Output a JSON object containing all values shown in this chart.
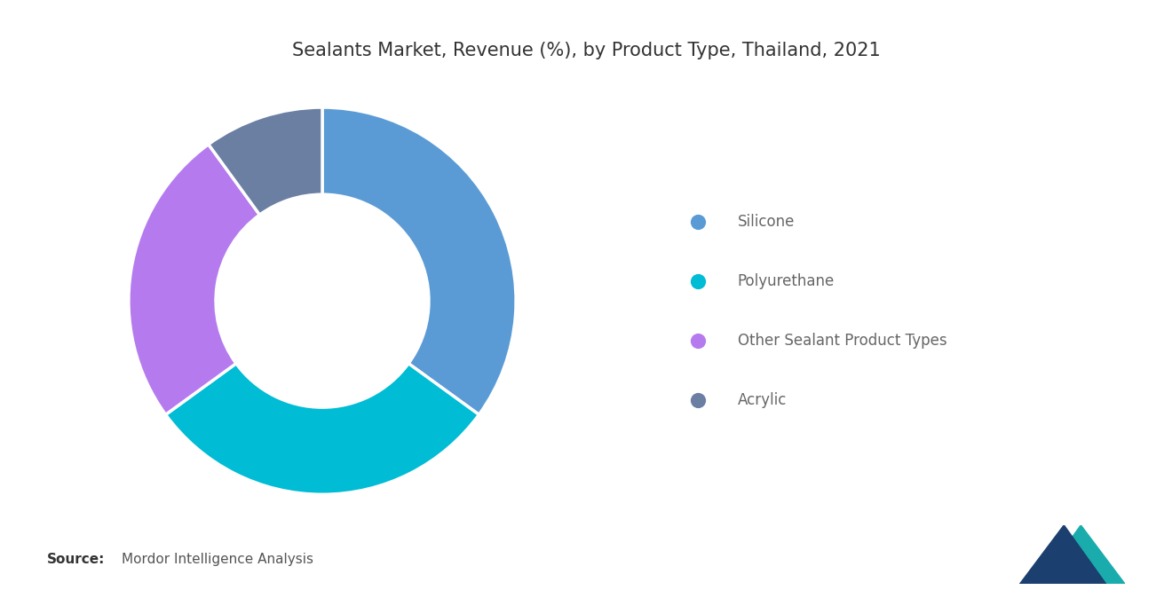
{
  "title": "Sealants Market, Revenue (%), by Product Type, Thailand, 2021",
  "segments": [
    "Silicone",
    "Polyurethane",
    "Other Sealant Product Types",
    "Acrylic"
  ],
  "values": [
    35,
    30,
    25,
    10
  ],
  "colors": [
    "#5B9BD5",
    "#00BCD4",
    "#B57BEE",
    "#6B7FA3"
  ],
  "source_bold": "Source:",
  "source_text": "Mordor Intelligence Analysis",
  "background_color": "#ffffff",
  "title_fontsize": 15,
  "legend_fontsize": 12,
  "source_fontsize": 11
}
